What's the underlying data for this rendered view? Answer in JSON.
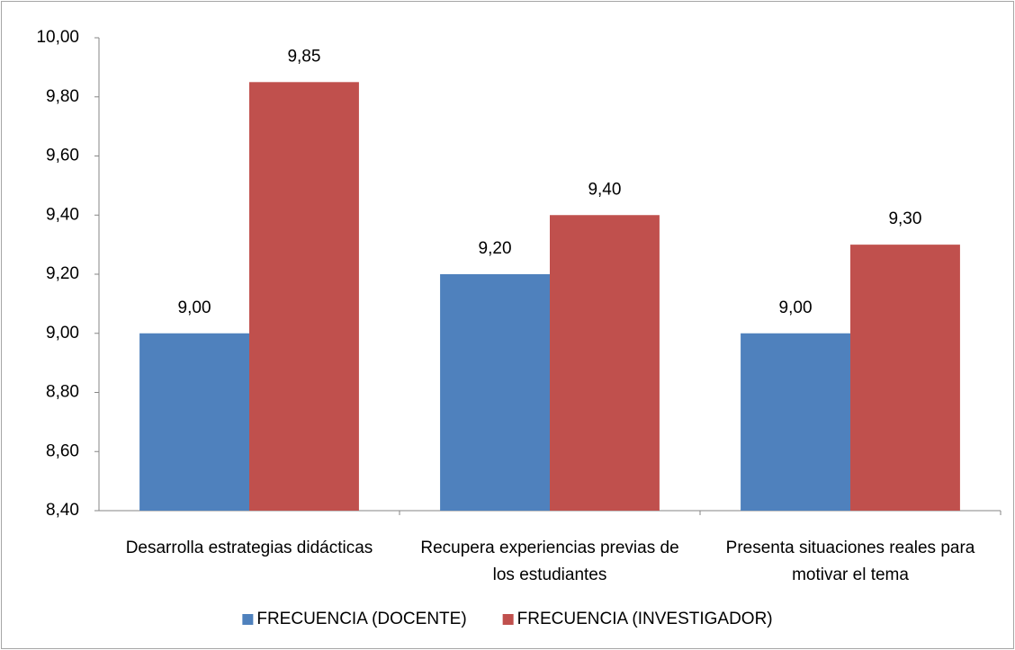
{
  "chart_data": {
    "type": "bar",
    "categories": [
      "Desarrolla estrategias didácticas",
      "Recupera experiencias previas de los estudiantes",
      "Presenta situaciones reales para motivar el tema"
    ],
    "series": [
      {
        "name": "FRECUENCIA (DOCENTE)",
        "color": "#4f81bd",
        "values": [
          9.0,
          9.2,
          9.0
        ],
        "value_labels": [
          "9,00",
          "9,20",
          "9,00"
        ]
      },
      {
        "name": "FRECUENCIA (INVESTIGADOR)",
        "color": "#c0504d",
        "values": [
          9.85,
          9.4,
          9.3
        ],
        "value_labels": [
          "9,85",
          "9,40",
          "9,30"
        ]
      }
    ],
    "ylim": [
      8.4,
      10.0
    ],
    "yticks": [
      {
        "value": 8.4,
        "label": "8,40"
      },
      {
        "value": 8.6,
        "label": "8,60"
      },
      {
        "value": 8.8,
        "label": "8,80"
      },
      {
        "value": 9.0,
        "label": "9,00"
      },
      {
        "value": 9.2,
        "label": "9,20"
      },
      {
        "value": 9.4,
        "label": "9,40"
      },
      {
        "value": 9.6,
        "label": "9,60"
      },
      {
        "value": 9.8,
        "label": "9,80"
      },
      {
        "value": 10.0,
        "label": "10,00"
      }
    ],
    "grid": false,
    "legend": "bottom"
  }
}
